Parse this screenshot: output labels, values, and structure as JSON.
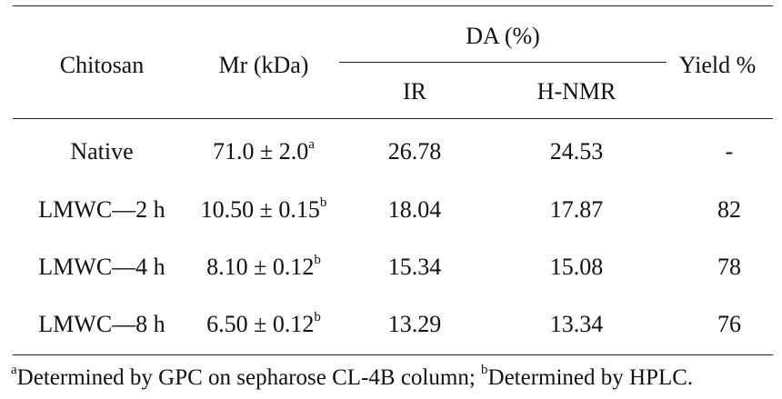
{
  "table": {
    "headers": {
      "chitosan": "Chitosan",
      "mr": "Mr (kDa)",
      "da_group": "DA (%)",
      "ir": "IR",
      "hnmr": "H-NMR",
      "yield": "Yield %"
    },
    "rows": [
      {
        "chitosan": "Native",
        "mr": "71.0 ± 2.0",
        "mr_sup": "a",
        "ir": "26.78",
        "hnmr": "24.53",
        "yield": "-"
      },
      {
        "chitosan": "LMWC—2 h",
        "mr": "10.50 ± 0.15",
        "mr_sup": "b",
        "ir": "18.04",
        "hnmr": "17.87",
        "yield": "82"
      },
      {
        "chitosan": "LMWC—4 h",
        "mr": "8.10 ± 0.12",
        "mr_sup": "b",
        "ir": "15.34",
        "hnmr": "15.08",
        "yield": "78"
      },
      {
        "chitosan": "LMWC—8 h",
        "mr": "6.50 ± 0.12",
        "mr_sup": "b",
        "ir": "13.29",
        "hnmr": "13.34",
        "yield": "76"
      }
    ]
  },
  "footnote": {
    "sup_a": "a",
    "text_a": "Determined by GPC on sepharose CL-4B column; ",
    "sup_b": "b",
    "text_b": "Determined by HPLC."
  }
}
